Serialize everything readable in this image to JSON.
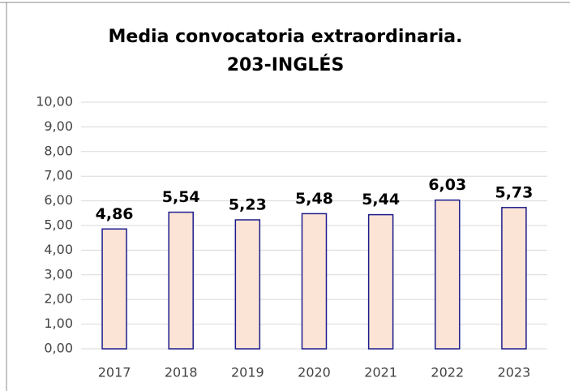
{
  "chart_data": {
    "type": "bar",
    "title": "Media convocatoria extraordinaria.",
    "subtitle": "203-INGLÉS",
    "categories": [
      "2017",
      "2018",
      "2019",
      "2020",
      "2021",
      "2022",
      "2023"
    ],
    "values": [
      4.86,
      5.54,
      5.23,
      5.48,
      5.44,
      6.03,
      5.73
    ],
    "value_labels": [
      "4,86",
      "5,54",
      "5,23",
      "5,48",
      "5,44",
      "6,03",
      "5,73"
    ],
    "color": "#fbe4d5",
    "edge_color": "#1c1c8c",
    "ylim": [
      0,
      10
    ],
    "yticks": [
      {
        "value": 0,
        "label": "0,00"
      },
      {
        "value": 1,
        "label": "1,00"
      },
      {
        "value": 2,
        "label": "2,00"
      },
      {
        "value": 3,
        "label": "3,00"
      },
      {
        "value": 4,
        "label": "4,00"
      },
      {
        "value": 5,
        "label": "5,00"
      },
      {
        "value": 6,
        "label": "6,00"
      },
      {
        "value": 7,
        "label": "7,00"
      },
      {
        "value": 8,
        "label": "8,00"
      },
      {
        "value": 9,
        "label": "9,00"
      },
      {
        "value": 10,
        "label": "10,00"
      }
    ],
    "grid": true
  }
}
